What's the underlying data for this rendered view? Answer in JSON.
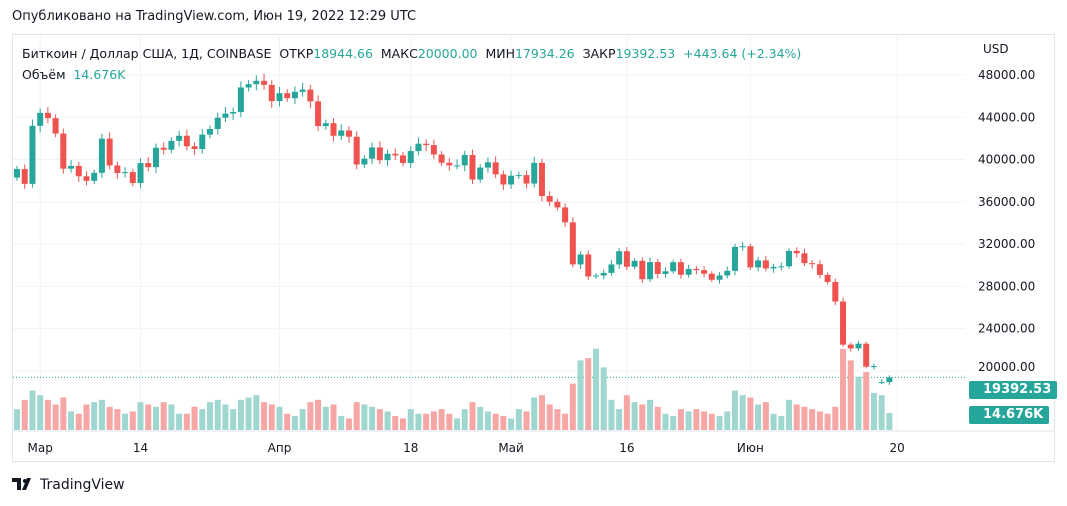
{
  "published": "Опубликовано на TradingView.com, Июн 19, 2022 12:29 UTC",
  "legend": {
    "symbol": "Биткоин / Доллар США, 1Д, COINBASE",
    "open_label": "ОТКР",
    "open": "18944.66",
    "high_label": "МАКС",
    "high": "20000.00",
    "low_label": "МИН",
    "low": "17934.26",
    "close_label": "ЗАКР",
    "close": "19392.53",
    "change": "+443.64 (+2.34%)",
    "volume_label": "Объём",
    "volume": "14.676K"
  },
  "currency": "USD",
  "last_price_badge": "19392.53",
  "volume_badge": "14.676K",
  "logo": "TradingView",
  "colors": {
    "up": "#26a69a",
    "down": "#ef5350",
    "up_vol": "#9fd6d0",
    "down_vol": "#f5a6a5"
  },
  "chart_data": {
    "type": "candlestick",
    "start_date": "2022-02-26",
    "y_ticks": [
      "48000.00",
      "44000.00",
      "40000.00",
      "36000.00",
      "32000.00",
      "28000.00",
      "24000.00",
      "20000.00"
    ],
    "y_tick_values": [
      48000,
      44000,
      40000,
      36000,
      32000,
      28000,
      24000,
      20000
    ],
    "x_ticks": [
      {
        "label": "Мар",
        "day": 3
      },
      {
        "label": "14",
        "day": 16
      },
      {
        "label": "Апр",
        "day": 34
      },
      {
        "label": "18",
        "day": 51
      },
      {
        "label": "Май",
        "day": 64
      },
      {
        "label": "16",
        "day": 79
      },
      {
        "label": "Июн",
        "day": 95
      },
      {
        "label": "20",
        "day": 114
      }
    ],
    "first_open": 38300,
    "close": [
      39100,
      37700,
      43190,
      44420,
      43920,
      42460,
      39140,
      39400,
      38420,
      37990,
      38740,
      41980,
      39440,
      38730,
      38810,
      37780,
      39670,
      39280,
      41120,
      40930,
      41770,
      42250,
      41260,
      41000,
      42360,
      42890,
      43960,
      44350,
      44500,
      46820,
      47130,
      47450,
      47060,
      45530,
      46280,
      45810,
      46410,
      46620,
      45500,
      43170,
      43440,
      42250,
      42750,
      42160,
      39530,
      40080,
      41150,
      39940,
      40550,
      40390,
      39680,
      40800,
      41500,
      41370,
      40480,
      39700,
      39450,
      39450,
      40430,
      38110,
      39240,
      39740,
      38600,
      37640,
      38470,
      38530,
      37730,
      39690,
      36550,
      36010,
      35470,
      34060,
      30080,
      31020,
      28940,
      29030,
      29280,
      30080,
      31330,
      29860,
      30420,
      28680,
      30300,
      29180,
      29430,
      30290,
      29100,
      29650,
      29540,
      29200,
      28630,
      29030,
      29470,
      31730,
      31800,
      29800,
      30460,
      29700,
      29850,
      29900,
      31360,
      31130,
      30200,
      30100,
      29090,
      28420,
      26570,
      22490,
      22140,
      22580,
      20400,
      20460,
      18944.66,
      19392.53
    ],
    "volume_k": [
      18,
      26,
      34,
      30,
      26,
      22,
      28,
      16,
      14,
      22,
      24,
      26,
      20,
      18,
      14,
      16,
      24,
      22,
      20,
      24,
      22,
      14,
      14,
      20,
      18,
      24,
      26,
      22,
      18,
      26,
      28,
      30,
      24,
      22,
      20,
      14,
      12,
      18,
      24,
      26,
      20,
      22,
      12,
      10,
      24,
      22,
      20,
      18,
      16,
      12,
      10,
      18,
      14,
      14,
      16,
      18,
      14,
      10,
      18,
      24,
      20,
      16,
      14,
      12,
      10,
      18,
      16,
      28,
      30,
      22,
      18,
      14,
      40,
      60,
      62,
      70,
      54,
      26,
      18,
      30,
      24,
      22,
      26,
      20,
      14,
      12,
      18,
      16,
      18,
      16,
      14,
      12,
      16,
      34,
      30,
      28,
      22,
      24,
      14,
      12,
      26,
      22,
      20,
      18,
      16,
      14,
      20,
      70,
      60,
      46,
      50,
      32,
      30,
      14.676
    ],
    "ylim": [
      17000,
      49500
    ]
  }
}
